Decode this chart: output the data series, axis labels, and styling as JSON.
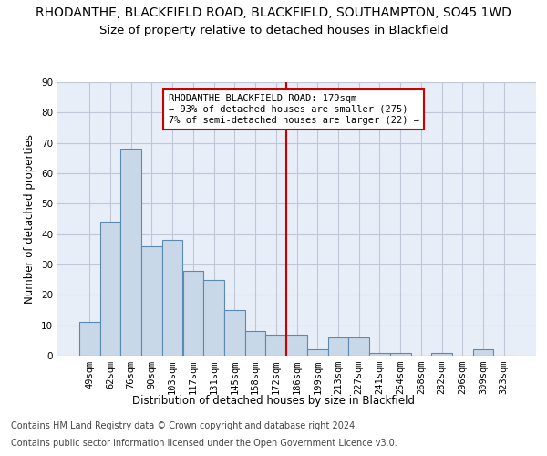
{
  "title_line1": "RHODANTHE, BLACKFIELD ROAD, BLACKFIELD, SOUTHAMPTON, SO45 1WD",
  "title_line2": "Size of property relative to detached houses in Blackfield",
  "xlabel": "Distribution of detached houses by size in Blackfield",
  "ylabel": "Number of detached properties",
  "categories": [
    "49sqm",
    "62sqm",
    "76sqm",
    "90sqm",
    "103sqm",
    "117sqm",
    "131sqm",
    "145sqm",
    "158sqm",
    "172sqm",
    "186sqm",
    "199sqm",
    "213sqm",
    "227sqm",
    "241sqm",
    "254sqm",
    "268sqm",
    "282sqm",
    "296sqm",
    "309sqm",
    "323sqm"
  ],
  "values": [
    11,
    44,
    68,
    36,
    38,
    28,
    25,
    15,
    8,
    7,
    7,
    2,
    6,
    6,
    1,
    1,
    0,
    1,
    0,
    2,
    0
  ],
  "bar_color": "#c8d8e8",
  "bar_edge_color": "#5a8ab0",
  "vline_x_index": 9.5,
  "vline_color": "#cc0000",
  "annotation_text": "RHODANTHE BLACKFIELD ROAD: 179sqm\n← 93% of detached houses are smaller (275)\n7% of semi-detached houses are larger (22) →",
  "annotation_box_color": "#ffffff",
  "annotation_box_edge": "#cc0000",
  "ylim": [
    0,
    90
  ],
  "yticks": [
    0,
    10,
    20,
    30,
    40,
    50,
    60,
    70,
    80,
    90
  ],
  "grid_color": "#c0c8d8",
  "bg_color": "#e8eef8",
  "footer1": "Contains HM Land Registry data © Crown copyright and database right 2024.",
  "footer2": "Contains public sector information licensed under the Open Government Licence v3.0.",
  "title_fontsize": 10,
  "subtitle_fontsize": 9.5,
  "axis_label_fontsize": 8.5,
  "tick_fontsize": 7.5,
  "footer_fontsize": 7,
  "ann_fontsize": 7.5
}
